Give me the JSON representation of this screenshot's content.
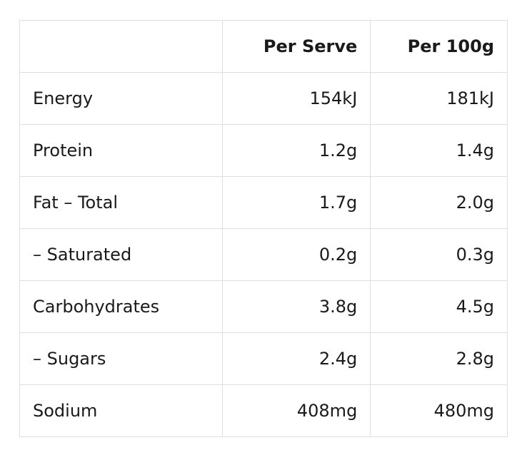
{
  "table": {
    "header": [
      "",
      "Per Serve",
      "Per 100g"
    ],
    "rows": [
      [
        "Energy",
        "154kJ",
        "181kJ"
      ],
      [
        "Protein",
        "1.2g",
        "1.4g"
      ],
      [
        "Fat – Total",
        "1.7g",
        "2.0g"
      ],
      [
        "– Saturated",
        "0.2g",
        "0.3g"
      ],
      [
        "Carbohydrates",
        "3.8g",
        "4.5g"
      ],
      [
        "– Sugars",
        "2.4g",
        "2.8g"
      ],
      [
        "Sodium",
        "408mg",
        "480mg"
      ]
    ]
  }
}
